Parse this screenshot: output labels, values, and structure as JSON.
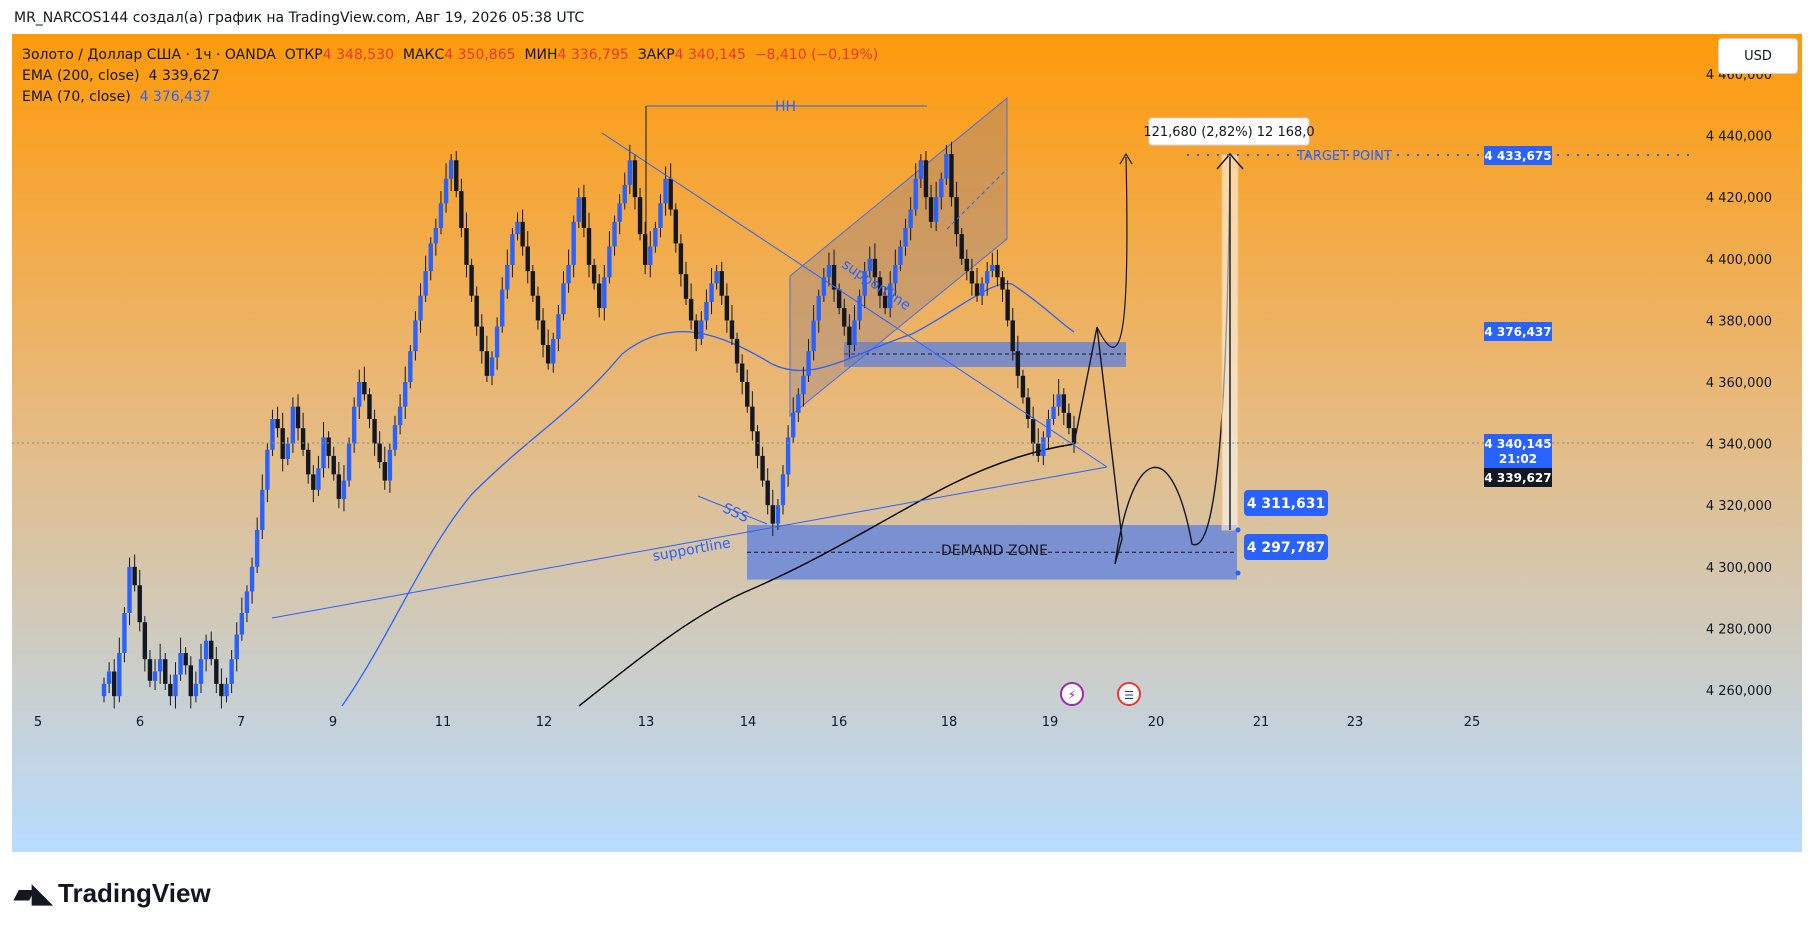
{
  "attribution": "MR_NARCOS144 создал(а) график на TradingView.com, Авг 19, 2026 05:38 UTC",
  "currency_button": "USD",
  "brand": "TradingView",
  "legend": {
    "symbol": "Золото / Доллар США · 1ч · OANDA",
    "open_label": "ОТКР",
    "open": "4 348,530",
    "high_label": "МАКС",
    "high": "4 350,865",
    "low_label": "МИН",
    "low": "4 336,795",
    "close_label": "ЗАКР",
    "close": "4 340,145",
    "change": "−8,410 (−0,19%)",
    "ema200_label": "EMA (200, close)",
    "ema200": "4 339,627",
    "ema70_label": "EMA (70, close)",
    "ema70": "4 376,437"
  },
  "colors": {
    "bg_top": "#ff9a0a",
    "bg_bottom": "#b8dcff",
    "candle": "#2962ff",
    "candle_wick": "#131722",
    "ema70": "#2962ff",
    "ema200": "#000000",
    "accent_label": "#2962ff",
    "zone": "#5b7fe0"
  },
  "annotations": {
    "hh": "HH",
    "sss": "SSS",
    "supportline_1": "supportline",
    "supportline_2": "supportline",
    "demand_zone": "DEMAND ZONE",
    "target_point": "TARGET POINT",
    "measure": "121,680 (2,82%) 12 168,0",
    "level_high": "4 311,631",
    "level_low": "4 297,787"
  },
  "price_tags": {
    "target": "4 433,675",
    "ema70": "4 376,437",
    "last_price": "4 340,145",
    "countdown": "21:02",
    "ema200": "4 339,627"
  },
  "chart_data": {
    "type": "candlestick",
    "instrument": "Золото / Доллар США",
    "timeframe": "1ч",
    "x_ticks": [
      "5",
      "6",
      "7",
      "9",
      "11",
      "12",
      "13",
      "14",
      "16",
      "18",
      "19",
      "20",
      "21",
      "23",
      "25"
    ],
    "y_ticks": [
      "4 260,000",
      "4 280,000",
      "4 300,000",
      "4 320,000",
      "4 340,000",
      "4 360,000",
      "4 380,000",
      "4 400,000",
      "4 420,000",
      "4 440,000",
      "4 460,000"
    ],
    "y_range": [
      4252,
      4473
    ],
    "series": [
      {
        "name": "EMA (200, close)",
        "last": 4339.627
      },
      {
        "name": "EMA (70, close)",
        "last": 4376.437
      }
    ],
    "candles_close": [
      4262,
      4266,
      4258,
      4272,
      4285,
      4300,
      4294,
      4282,
      4270,
      4263,
      4266,
      4270,
      4262,
      4258,
      4265,
      4272,
      4268,
      4258,
      4262,
      4270,
      4276,
      4270,
      4262,
      4258,
      4262,
      4270,
      4278,
      4285,
      4292,
      4300,
      4312,
      4325,
      4338,
      4348,
      4345,
      4335,
      4340,
      4352,
      4345,
      4338,
      4330,
      4325,
      4332,
      4342,
      4336,
      4330,
      4322,
      4328,
      4340,
      4352,
      4360,
      4356,
      4348,
      4340,
      4334,
      4328,
      4338,
      4346,
      4352,
      4360,
      4370,
      4380,
      4388,
      4396,
      4405,
      4410,
      4418,
      4426,
      4432,
      4422,
      4410,
      4398,
      4388,
      4378,
      4370,
      4362,
      4368,
      4378,
      4390,
      4398,
      4408,
      4412,
      4404,
      4396,
      4388,
      4380,
      4372,
      4366,
      4374,
      4382,
      4392,
      4398,
      4412,
      4420,
      4410,
      4398,
      4392,
      4384,
      4394,
      4404,
      4412,
      4418,
      4424,
      4432,
      4420,
      4408,
      4398,
      4404,
      4410,
      4418,
      4426,
      4416,
      4405,
      4395,
      4387,
      4380,
      4374,
      4380,
      4386,
      4392,
      4396,
      4388,
      4380,
      4374,
      4366,
      4360,
      4352,
      4344,
      4336,
      4328,
      4320,
      4314,
      4320,
      4330,
      4342,
      4350,
      4356,
      4362,
      4370,
      4380,
      4388,
      4394,
      4398,
      4390,
      4384,
      4378,
      4372,
      4380,
      4388,
      4396,
      4400,
      4394,
      4388,
      4384,
      4392,
      4398,
      4404,
      4410,
      4416,
      4426,
      4432,
      4420,
      4412,
      4420,
      4426,
      4434,
      4420,
      4408,
      4400,
      4396,
      4392,
      4388,
      4392,
      4396,
      4398,
      4394,
      4390,
      4380,
      4370,
      4362,
      4355,
      4348,
      4340,
      4336,
      4342,
      4348,
      4352,
      4356,
      4350,
      4345,
      4340
    ],
    "target_point": 4433.675,
    "demand_zone": [
      4297.787,
      4311.631
    ],
    "measure": {
      "points": 121.68,
      "percent": 2.82
    }
  }
}
